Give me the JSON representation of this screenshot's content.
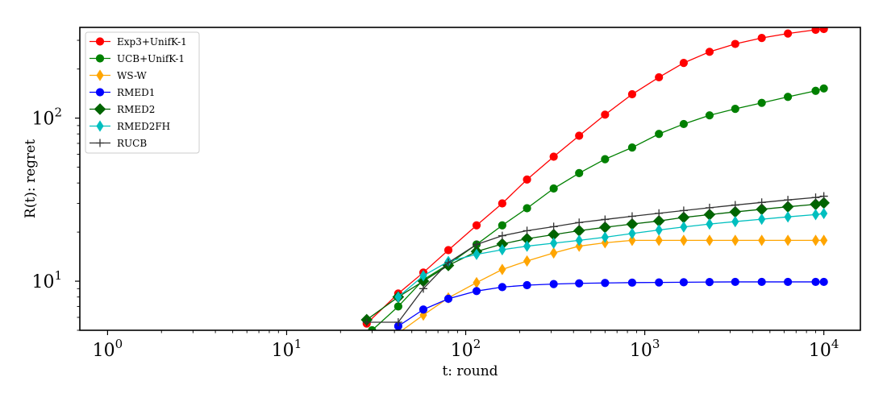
{
  "chart_data": {
    "type": "line",
    "title": "",
    "xlabel": "t: round",
    "ylabel": "R(t): regret",
    "xscale": "log",
    "yscale": "log",
    "xlim": [
      0.7,
      16000
    ],
    "ylim": [
      5,
      360
    ],
    "grid": false,
    "legend_position": "top-left",
    "x_ticks": [
      {
        "value": 1,
        "base": "10",
        "exp": "0"
      },
      {
        "value": 10,
        "base": "10",
        "exp": "1"
      },
      {
        "value": 100,
        "base": "10",
        "exp": "2"
      },
      {
        "value": 1000,
        "base": "10",
        "exp": "3"
      },
      {
        "value": 10000,
        "base": "10",
        "exp": "4"
      }
    ],
    "y_ticks": [
      {
        "value": 10,
        "base": "10",
        "exp": "1"
      },
      {
        "value": 100,
        "base": "10",
        "exp": "2"
      }
    ],
    "series": [
      {
        "name": "Exp3+UnifK-1",
        "color": "#ff0000",
        "marker": "circle",
        "x": [
          28,
          42,
          58,
          80,
          115,
          160,
          220,
          310,
          430,
          600,
          850,
          1200,
          1650,
          2300,
          3200,
          4500,
          6300,
          9000,
          10000
        ],
        "y": [
          5.5,
          8.4,
          11.3,
          15.5,
          22,
          30,
          42,
          58,
          78,
          105,
          140,
          178,
          218,
          255,
          285,
          310,
          330,
          348,
          352
        ]
      },
      {
        "name": "UCB+UnifK-1",
        "color": "#008000",
        "marker": "circle",
        "x": [
          30,
          42,
          58,
          80,
          115,
          160,
          220,
          310,
          430,
          600,
          850,
          1200,
          1650,
          2300,
          3200,
          4500,
          6300,
          9000,
          10000
        ],
        "y": [
          5.0,
          7.0,
          10.2,
          12.7,
          16.8,
          22,
          28,
          37,
          46,
          56,
          66,
          80,
          92,
          104,
          114,
          124,
          135,
          147,
          152
        ]
      },
      {
        "name": "WS-W",
        "color": "#ffa500",
        "marker": "thin_diamond",
        "x": [
          42,
          58,
          80,
          115,
          160,
          220,
          310,
          430,
          600,
          850,
          1200,
          1650,
          2300,
          3200,
          4500,
          6300,
          9000,
          10000
        ],
        "y": [
          4.8,
          6.2,
          7.9,
          9.8,
          11.8,
          13.3,
          14.9,
          16.4,
          17.2,
          17.8,
          17.8,
          17.8,
          17.8,
          17.8,
          17.8,
          17.8,
          17.8,
          17.8
        ]
      },
      {
        "name": "RMED1",
        "color": "#0000ff",
        "marker": "circle",
        "x": [
          42,
          58,
          80,
          115,
          160,
          220,
          310,
          430,
          600,
          850,
          1200,
          1650,
          2300,
          3200,
          4500,
          6300,
          9000,
          10000
        ],
        "y": [
          5.3,
          6.7,
          7.8,
          8.7,
          9.2,
          9.45,
          9.6,
          9.7,
          9.75,
          9.8,
          9.82,
          9.85,
          9.88,
          9.9,
          9.9,
          9.9,
          9.9,
          9.9
        ]
      },
      {
        "name": "RMED2",
        "color": "#006400",
        "marker": "diamond",
        "x": [
          28,
          42,
          58,
          80,
          115,
          160,
          220,
          310,
          430,
          600,
          850,
          1200,
          1650,
          2300,
          3200,
          4500,
          6300,
          9000,
          10000
        ],
        "y": [
          5.8,
          8.0,
          10.0,
          12.5,
          15.2,
          16.9,
          18.2,
          19.3,
          20.4,
          21.4,
          22.4,
          23.4,
          24.6,
          25.6,
          26.6,
          27.6,
          28.6,
          29.6,
          30.2
        ]
      },
      {
        "name": "RMED2FH",
        "color": "#00bfbf",
        "marker": "thin_diamond",
        "x": [
          42,
          58,
          80,
          115,
          160,
          220,
          310,
          430,
          600,
          850,
          1200,
          1650,
          2300,
          3200,
          4500,
          6300,
          9000,
          10000
        ],
        "y": [
          8.0,
          10.8,
          13.2,
          14.6,
          15.6,
          16.4,
          17.1,
          17.8,
          18.6,
          19.6,
          20.6,
          21.5,
          22.4,
          23.2,
          24.0,
          24.8,
          25.6,
          26.0
        ]
      },
      {
        "name": "RUCB",
        "color": "#333333",
        "marker": "plus",
        "x": [
          28,
          42,
          58,
          80,
          115,
          160,
          220,
          310,
          430,
          600,
          850,
          1200,
          1650,
          2300,
          3200,
          4500,
          6300,
          9000,
          10000
        ],
        "y": [
          5.6,
          5.6,
          9.0,
          13.0,
          16.8,
          19.0,
          20.4,
          21.6,
          22.9,
          23.9,
          25.0,
          26.1,
          27.1,
          28.2,
          29.3,
          30.4,
          31.5,
          32.6,
          33.2
        ]
      }
    ]
  }
}
